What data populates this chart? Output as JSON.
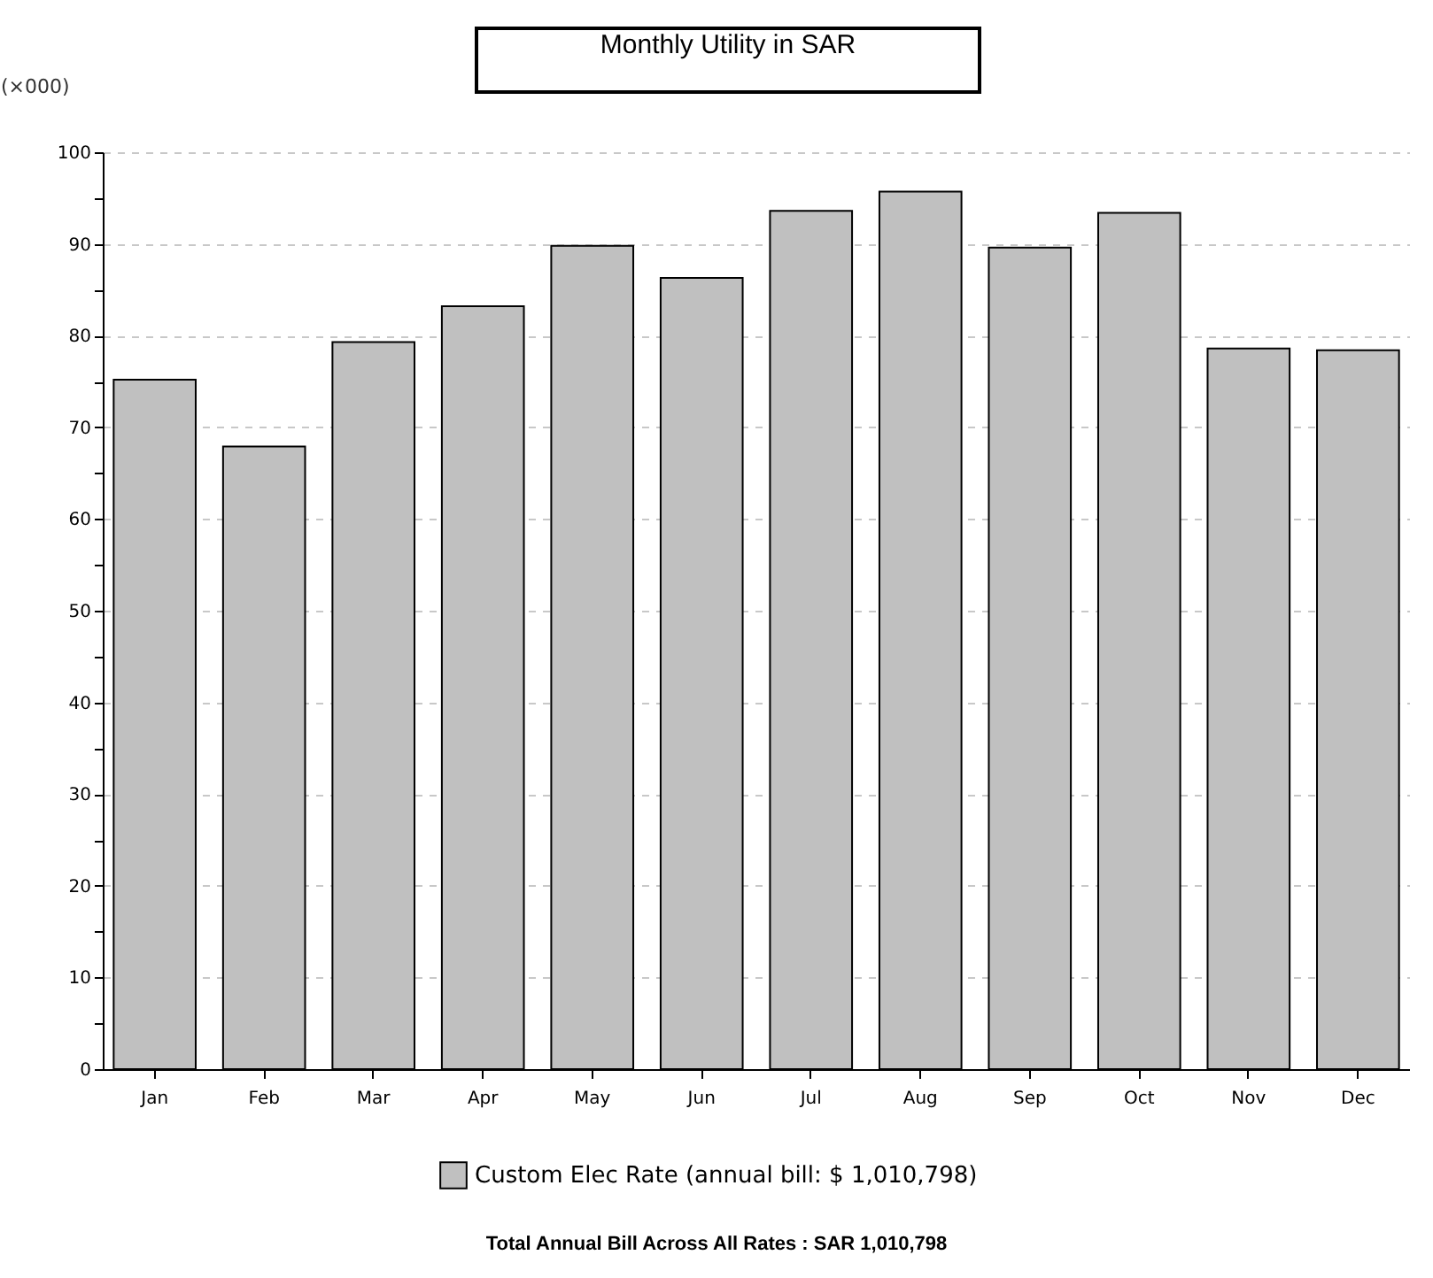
{
  "chart_data": {
    "type": "bar",
    "title": "Monthly Utility in SAR",
    "ylabel": "(×000)",
    "categories": [
      "Jan",
      "Feb",
      "Mar",
      "Apr",
      "May",
      "Jun",
      "Jul",
      "Aug",
      "Sep",
      "Oct",
      "Nov",
      "Dec"
    ],
    "series": [
      {
        "name": "Custom Elec Rate (annual bill: $ 1,010,798)",
        "color": "#c0c0c0",
        "values": [
          75.2,
          67.9,
          79.3,
          83.2,
          89.8,
          86.3,
          93.6,
          95.7,
          89.6,
          93.4,
          78.6,
          78.4
        ]
      }
    ],
    "ylim": [
      0,
      100
    ],
    "yticks": [
      0,
      {
        "value": 5,
        "label": null
      },
      10,
      {
        "value": 15,
        "label": null
      },
      20,
      {
        "value": 25,
        "label": null
      },
      30,
      {
        "value": 35,
        "label": null
      },
      40,
      {
        "value": 45,
        "label": null
      },
      50,
      {
        "value": 55,
        "label": null
      },
      60,
      {
        "value": 65,
        "label": null
      },
      70,
      {
        "value": 75,
        "label": null
      },
      80,
      {
        "value": 85,
        "label": null
      },
      90,
      {
        "value": 95,
        "label": null
      },
      100
    ],
    "grid": "y",
    "legend": "bottom",
    "annotations": [
      "Total Annual Bill Across All Rates : SAR 1,010,798"
    ]
  }
}
